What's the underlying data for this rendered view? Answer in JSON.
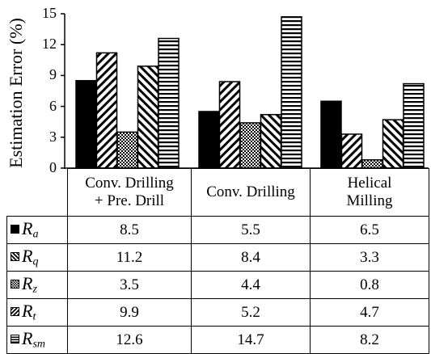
{
  "chart_data": {
    "type": "bar",
    "ylabel": "Estimation Error (%)",
    "ylim": [
      0,
      15
    ],
    "yticks": [
      "0",
      "3",
      "6",
      "9",
      "12",
      "15"
    ],
    "categories": [
      "Conv. Drilling\n+ Pre. Drill",
      "Conv. Drilling",
      "Helical\nMilling"
    ],
    "category_lines": [
      [
        "Conv. Drilling",
        "+ Pre. Drill"
      ],
      [
        "Conv. Drilling"
      ],
      [
        "Helical",
        "Milling"
      ]
    ],
    "series": [
      {
        "name": "Ra",
        "symbol": "R",
        "sub": "a",
        "pattern": "solid",
        "values": [
          8.5,
          5.5,
          6.5
        ],
        "labels": [
          "8.5",
          "5.5",
          "6.5"
        ]
      },
      {
        "name": "Rq",
        "symbol": "R",
        "sub": "q",
        "pattern": "diag",
        "values": [
          11.2,
          8.4,
          3.3
        ],
        "labels": [
          "11.2",
          "8.4",
          "3.3"
        ]
      },
      {
        "name": "Rz",
        "symbol": "R",
        "sub": "z",
        "pattern": "check",
        "values": [
          3.5,
          4.4,
          0.8
        ],
        "labels": [
          "3.5",
          "4.4",
          "0.8"
        ]
      },
      {
        "name": "Rt",
        "symbol": "R",
        "sub": "t",
        "pattern": "rdiag",
        "values": [
          9.9,
          5.2,
          4.7
        ],
        "labels": [
          "9.9",
          "5.2",
          "4.7"
        ]
      },
      {
        "name": "Rsm",
        "symbol": "R",
        "sub": "sm",
        "pattern": "horiz",
        "values": [
          12.6,
          14.7,
          8.2
        ],
        "labels": [
          "12.6",
          "14.7",
          "8.2"
        ]
      }
    ],
    "grid": false,
    "legend": "data-table"
  }
}
